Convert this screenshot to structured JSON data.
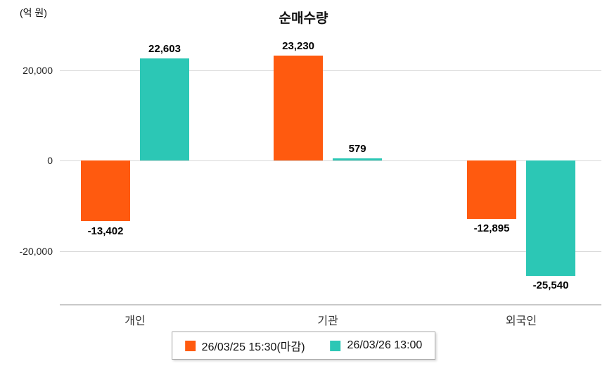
{
  "title": "순매수량",
  "unit_label": "(억 원)",
  "chart_data": {
    "type": "bar",
    "title": "순매수량",
    "ylabel": "(억 원)",
    "categories": [
      "개인",
      "기관",
      "외국인"
    ],
    "series": [
      {
        "name": "26/03/25 15:30(마감)",
        "color": "#ff5a0f",
        "values": [
          -13402,
          23230,
          -12895
        ]
      },
      {
        "name": "26/03/26 13:00",
        "color": "#2cc7b5",
        "values": [
          22603,
          579,
          -25540
        ]
      }
    ],
    "value_labels": [
      "-13,402",
      "22,603",
      "23,230",
      "579",
      "-12,895",
      "-25,540"
    ],
    "yticks": [
      20000,
      0,
      -20000
    ],
    "ytick_labels": [
      "20,000",
      "0",
      "-20,000"
    ],
    "ylim": [
      -31700,
      27000
    ],
    "grid": true,
    "legend_position": "bottom"
  },
  "legend": {
    "items": [
      {
        "label": "26/03/25 15:30(마감)",
        "color": "#ff5a0f"
      },
      {
        "label": "26/03/26 13:00",
        "color": "#2cc7b5"
      }
    ]
  }
}
